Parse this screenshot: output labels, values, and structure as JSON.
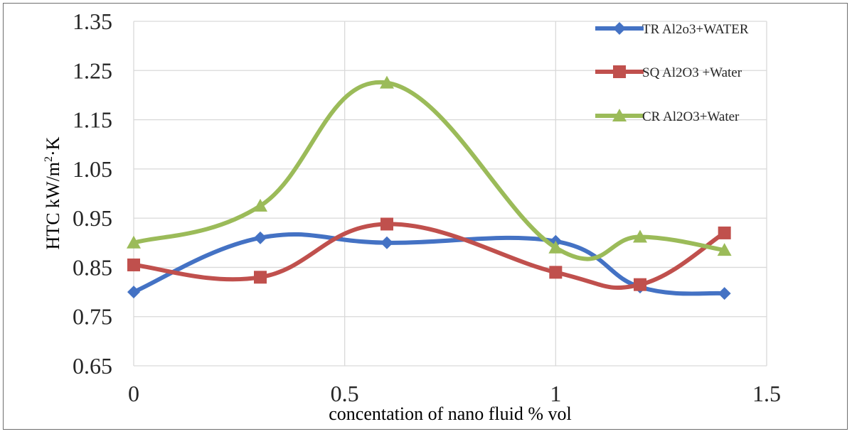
{
  "chart_data": {
    "type": "line",
    "xlabel": "concentation of nano fluid  % vol",
    "ylabel_main": "HTC kW/m",
    "ylabel_sup": "2",
    "ylabel_tail": "·K",
    "xlim": [
      0,
      1.5
    ],
    "ylim": [
      0.65,
      1.35
    ],
    "x_ticks": [
      "0",
      "0.5",
      "1",
      "1.5"
    ],
    "y_ticks": [
      "0.65",
      "0.75",
      "0.85",
      "0.95",
      "1.05",
      "1.15",
      "1.25",
      "1.35"
    ],
    "grid": true,
    "legend_position": "top-right",
    "series": [
      {
        "name": "TR  Al2o3+WATER",
        "color": "#4472c4",
        "marker": "diamond",
        "x": [
          0,
          0.3,
          0.6,
          1.0,
          1.2,
          1.4
        ],
        "y": [
          0.8,
          0.91,
          0.9,
          0.903,
          0.81,
          0.797
        ]
      },
      {
        "name": "SQ Al2O3 +Water",
        "color": "#c0504d",
        "marker": "square",
        "x": [
          0,
          0.3,
          0.6,
          1.0,
          1.2,
          1.4
        ],
        "y": [
          0.855,
          0.83,
          0.938,
          0.84,
          0.815,
          0.92
        ]
      },
      {
        "name": "CR Al2O3+Water",
        "color": "#9bbb59",
        "marker": "triangle",
        "x": [
          0,
          0.3,
          0.6,
          1.0,
          1.2,
          1.4
        ],
        "y": [
          0.9,
          0.975,
          1.225,
          0.89,
          0.912,
          0.885
        ]
      }
    ]
  }
}
